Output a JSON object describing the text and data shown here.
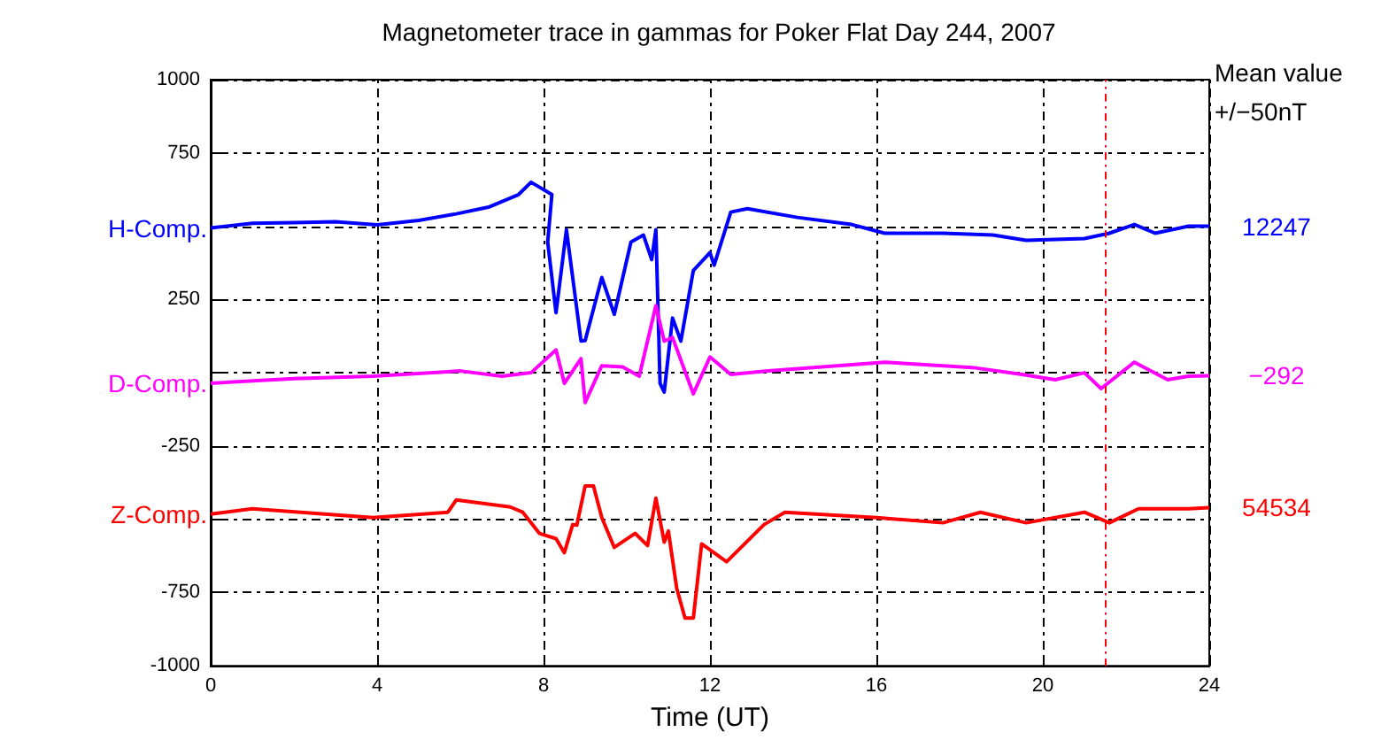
{
  "chart_data": {
    "type": "line",
    "title": "Magnetometer trace in gammas for Poker Flat Day 244, 2007",
    "xlabel": "Time (UT)",
    "annotations": [
      "Mean value\n+/−50nT",
      "12247",
      "−292",
      "54534"
    ],
    "xlim": [
      0,
      24
    ],
    "xticks": [
      0,
      4,
      8,
      12,
      16,
      20,
      24
    ],
    "ylim": [
      -1000,
      1000
    ],
    "yticks": [
      -1000,
      -750,
      {
        "value": -500,
        "label": null
      },
      -250,
      {
        "value": 0,
        "label": null
      },
      250,
      {
        "value": 500,
        "label": null
      },
      750,
      1000
    ],
    "grid": true,
    "legend": false,
    "ref_lines": [
      {
        "axis": "x",
        "value": 21.5,
        "color": "#0000ff",
        "line_style": "dashed"
      },
      {
        "axis": "x",
        "value": 21.5,
        "color": "#ff00ff",
        "line_style": "dashed"
      },
      {
        "axis": "x",
        "value": 21.5,
        "color": "#ff0000",
        "line_style": "dashed"
      }
    ],
    "series": [
      {
        "name": "H-Comp.",
        "color": "#0000ff",
        "x": [
          0,
          1,
          2,
          3,
          4,
          5,
          5.9,
          6.7,
          7.4,
          7.7,
          8.2,
          8.1,
          8.3,
          8.55,
          8.9,
          9.0,
          9.4,
          9.7,
          10.1,
          10.4,
          10.6,
          10.7,
          10.8,
          10.9,
          11.1,
          11.3,
          11.6,
          12.0,
          12.1,
          12.5,
          12.9,
          14.1,
          15.4,
          16.2,
          17.6,
          18.8,
          19.6,
          21.0,
          21.6,
          22.2,
          22.7,
          23.5,
          24
        ],
        "values": [
          494,
          510,
          512,
          515,
          505,
          520,
          542,
          566,
          608,
          650,
          608,
          446,
          205,
          488,
          108,
          110,
          325,
          199,
          446,
          470,
          386,
          488,
          -36,
          -66,
          187,
          108,
          349,
          410,
          367,
          548,
          560,
          530,
          506,
          476,
          476,
          470,
          452,
          458,
          476,
          506,
          476,
          500,
          500
        ]
      },
      {
        "name": "D-Comp.",
        "color": "#ff00ff",
        "x": [
          0,
          2,
          3.9,
          6,
          7,
          7.7,
          8.3,
          8.5,
          8.9,
          9.0,
          9.4,
          9.9,
          10.3,
          10.7,
          10.9,
          11.1,
          11.6,
          12,
          12.5,
          13.4,
          16.2,
          18.3,
          19.5,
          20.3,
          21.0,
          21.4,
          22.2,
          23.0,
          23.5,
          24
        ],
        "values": [
          -36,
          -20,
          -12,
          6,
          -12,
          0,
          78,
          -36,
          48,
          -102,
          24,
          20,
          -12,
          229,
          108,
          120,
          -72,
          54,
          -6,
          6,
          36,
          18,
          -6,
          -24,
          0,
          -54,
          36,
          -24,
          -12,
          -10
        ]
      },
      {
        "name": "Z-Comp.",
        "color": "#ff0000",
        "x": [
          0,
          1,
          3.9,
          5.7,
          5.9,
          7.2,
          7.5,
          7.9,
          8.3,
          8.5,
          8.7,
          8.8,
          9.0,
          9.2,
          9.4,
          9.7,
          10.2,
          10.5,
          10.7,
          10.9,
          11.0,
          11.2,
          11.4,
          11.6,
          11.8,
          12.4,
          13.3,
          13.8,
          16.0,
          17.6,
          18.5,
          19.6,
          21.0,
          21.6,
          22.3,
          23.5,
          24
        ],
        "values": [
          -482,
          -464,
          -494,
          -476,
          -434,
          -458,
          -476,
          -548,
          -566,
          -614,
          -518,
          -520,
          -386,
          -386,
          -494,
          -596,
          -548,
          -590,
          -428,
          -578,
          -540,
          -735,
          -837,
          -837,
          -584,
          -645,
          -518,
          -476,
          -494,
          -512,
          -476,
          -512,
          -476,
          -512,
          -464,
          -464,
          -460
        ]
      }
    ]
  }
}
